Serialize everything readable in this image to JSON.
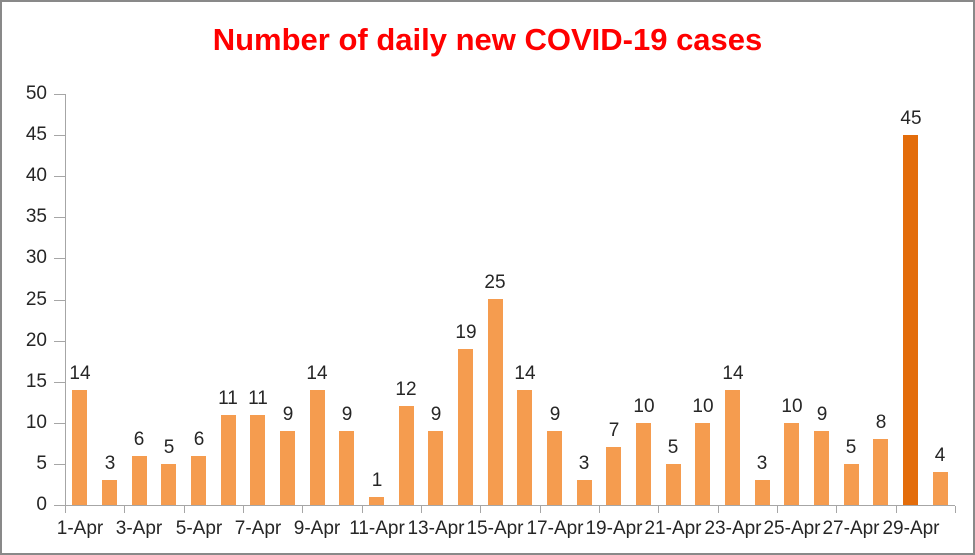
{
  "chart_data": {
    "type": "bar",
    "title": "Number of daily new COVID-19 cases",
    "categories": [
      "1-Apr",
      "2-Apr",
      "3-Apr",
      "4-Apr",
      "5-Apr",
      "6-Apr",
      "7-Apr",
      "8-Apr",
      "9-Apr",
      "10-Apr",
      "11-Apr",
      "12-Apr",
      "13-Apr",
      "14-Apr",
      "15-Apr",
      "16-Apr",
      "17-Apr",
      "18-Apr",
      "19-Apr",
      "20-Apr",
      "21-Apr",
      "22-Apr",
      "23-Apr",
      "24-Apr",
      "25-Apr",
      "26-Apr",
      "27-Apr",
      "28-Apr",
      "29-Apr",
      "30-Apr"
    ],
    "values": [
      14,
      3,
      6,
      5,
      6,
      11,
      11,
      9,
      14,
      9,
      1,
      12,
      9,
      19,
      25,
      14,
      9,
      3,
      7,
      10,
      5,
      10,
      14,
      3,
      10,
      9,
      5,
      8,
      45,
      4
    ],
    "data_labels_shown": true,
    "highlight_index": 28,
    "xlabel": "",
    "ylabel": "",
    "ylim": [
      0,
      50
    ],
    "yticks": [
      "0",
      "5",
      "10",
      "15",
      "20",
      "25",
      "30",
      "35",
      "40",
      "45",
      "50"
    ],
    "x_tick_labels": [
      "1-Apr",
      "3-Apr",
      "5-Apr",
      "7-Apr",
      "9-Apr",
      "11-Apr",
      "13-Apr",
      "15-Apr",
      "17-Apr",
      "19-Apr",
      "21-Apr",
      "23-Apr",
      "25-Apr",
      "27-Apr",
      "29-Apr"
    ],
    "grid": "off",
    "legend": "none",
    "colors": {
      "bar": "#F59C4F",
      "highlight_bar": "#E36C0A",
      "title": "#FF0000",
      "axis": "#A6A6A6",
      "text": "#262626",
      "frame_border": "#898989",
      "background": "#FFFFFF"
    }
  }
}
